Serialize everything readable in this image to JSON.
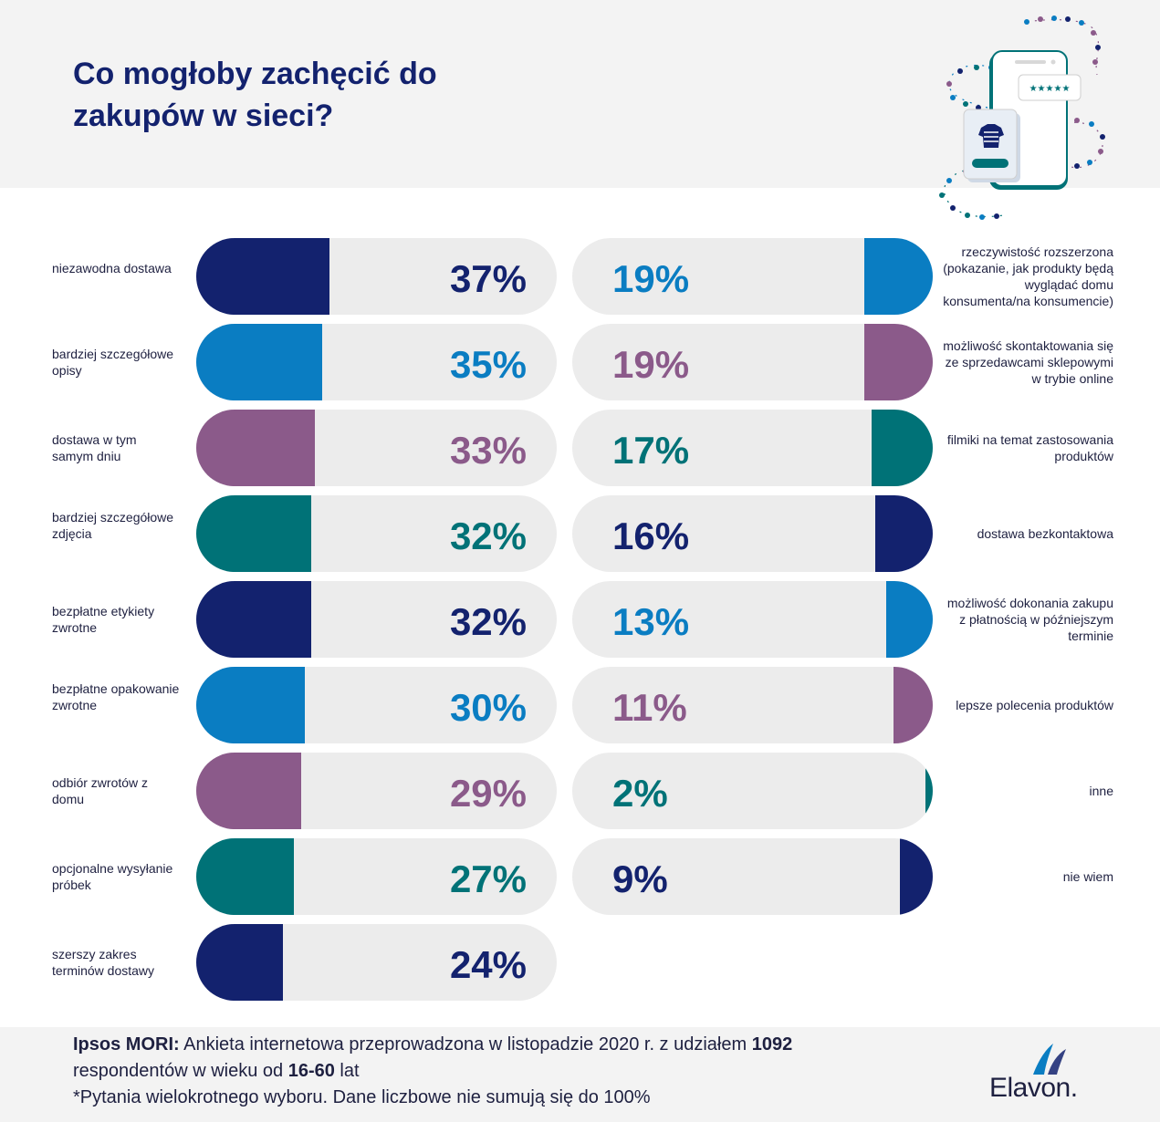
{
  "header": {
    "title": "Co mogłoby zachęcić do zakupów w sieci?",
    "illustration": "phone-shopping-icon"
  },
  "colors": {
    "navy": "#13226e",
    "blue": "#0a7dc2",
    "purple": "#8b5a8a",
    "teal": "#007277",
    "track": "#ececec",
    "header_bg": "#f3f3f3"
  },
  "chart_data": {
    "type": "bar",
    "title": "Co mogłoby zachęcić do zakupów w sieci?",
    "unit": "%",
    "series": [
      {
        "name": "left",
        "items": [
          {
            "label": "niezawodna dostawa",
            "value": 37,
            "display": "37%",
            "color": "navy"
          },
          {
            "label": "bardziej szczegółowe opisy",
            "value": 35,
            "display": "35%",
            "color": "blue"
          },
          {
            "label": "dostawa w tym samym dniu",
            "value": 33,
            "display": "33%",
            "color": "purple"
          },
          {
            "label": "bardziej szczegółowe zdjęcia",
            "value": 32,
            "display": "32%",
            "color": "teal"
          },
          {
            "label": "bezpłatne etykiety zwrotne",
            "value": 32,
            "display": "32%",
            "color": "navy"
          },
          {
            "label": "bezpłatne opakowanie zwrotne",
            "value": 30,
            "display": "30%",
            "color": "blue"
          },
          {
            "label": "odbiór zwrotów z domu",
            "value": 29,
            "display": "29%",
            "color": "purple"
          },
          {
            "label": "opcjonalne wysyłanie próbek",
            "value": 27,
            "display": "27%",
            "color": "teal"
          },
          {
            "label": "szerszy zakres terminów dostawy",
            "value": 24,
            "display": "24%",
            "color": "navy"
          }
        ]
      },
      {
        "name": "right",
        "items": [
          {
            "label": "rzeczywistość rozszerzona (pokazanie, jak produkty będą wyglądać domu konsumenta/na konsumencie)",
            "value": 19,
            "display": "19%",
            "color": "blue"
          },
          {
            "label": "możliwość skontaktowania się ze sprzedawcami sklepowymi w trybie online",
            "value": 19,
            "display": "19%",
            "color": "purple"
          },
          {
            "label": "filmiki na temat zastosowania produktów",
            "value": 17,
            "display": "17%",
            "color": "teal"
          },
          {
            "label": "dostawa bezkontaktowa",
            "value": 16,
            "display": "16%",
            "color": "navy"
          },
          {
            "label": "możliwość dokonania zakupu z płatnością w późniejszym terminie",
            "value": 13,
            "display": "13%",
            "color": "blue"
          },
          {
            "label": "lepsze polecenia produktów",
            "value": 11,
            "display": "11%",
            "color": "purple"
          },
          {
            "label": "inne",
            "value": 2,
            "display": "2%",
            "color": "teal"
          },
          {
            "label": "nie wiem",
            "value": 9,
            "display": "9%",
            "color": "navy"
          }
        ]
      }
    ],
    "xlim": [
      0,
      100
    ]
  },
  "footer": {
    "source_bold": "Ipsos MORI:",
    "source_text_1": " Ankieta internetowa przeprowadzona w listopadzie 2020 r. z udziałem ",
    "respondents": "1092",
    "source_text_2": "respondentów w wieku od ",
    "age_range": "16-60",
    "source_text_3": " lat",
    "note": "*Pytania wielokrotnego wyboru. Dane liczbowe nie sumują się do 100%"
  },
  "logo": {
    "text": "Elavon."
  }
}
